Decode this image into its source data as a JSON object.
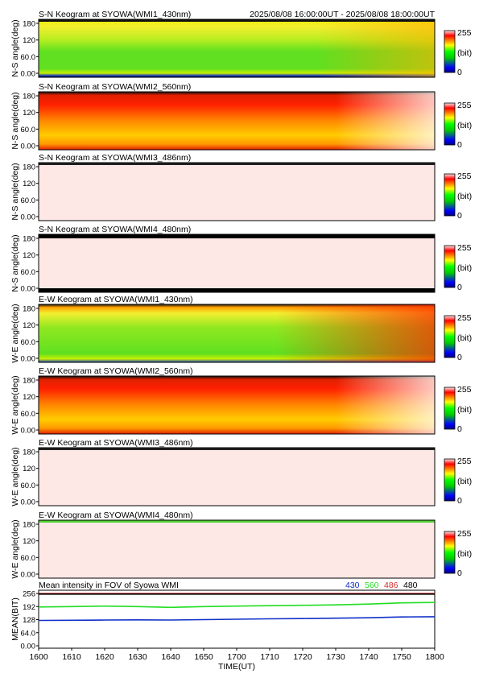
{
  "header": {
    "time_range": "2025/08/08 16:00:00UT - 2025/08/08 18:00:00UT"
  },
  "colorbar": {
    "max_label": "255",
    "unit_label": "(bit)",
    "min_label": "0"
  },
  "keogram_y_ticks": [
    "180",
    "120",
    "60.0",
    "0.00"
  ],
  "panels": [
    {
      "title": "S-N Keogram at SYOWA(WMI1_430nm)",
      "ylabel": "N-S angle(deg)",
      "pattern": "green"
    },
    {
      "title": "S-N Keogram at SYOWA(WMI2_560nm)",
      "ylabel": "N-S angle(deg)",
      "pattern": "red"
    },
    {
      "title": "S-N Keogram at SYOWA(WMI3_486nm)",
      "ylabel": "N-S angle(deg)",
      "pattern": "pink"
    },
    {
      "title": "S-N Keogram at SYOWA(WMI4_480nm)",
      "ylabel": "N-S angle(deg)",
      "pattern": "pink-dark-edges"
    },
    {
      "title": "E-W Keogram at SYOWA(WMI1_430nm)",
      "ylabel": "W-E angle(deg)",
      "pattern": "green-red-top"
    },
    {
      "title": "E-W Keogram at SYOWA(WMI2_560nm)",
      "ylabel": "W-E angle(deg)",
      "pattern": "red"
    },
    {
      "title": "E-W Keogram at SYOWA(WMI3_486nm)",
      "ylabel": "W-E angle(deg)",
      "pattern": "pink"
    },
    {
      "title": "E-W Keogram at SYOWA(WMI4_480nm)",
      "ylabel": "W-E angle(deg)",
      "pattern": "pink-green-top"
    }
  ],
  "chart_data": {
    "type": "line",
    "title": "Mean intensity in FOV of Syowa WMI",
    "xlabel": "TIME(UT)",
    "ylabel": "MEAN(BIT)",
    "x_ticks": [
      "1600",
      "1610",
      "1620",
      "1630",
      "1640",
      "1650",
      "1700",
      "1710",
      "1720",
      "1730",
      "1740",
      "1750",
      "1800"
    ],
    "y_ticks": [
      "256",
      "192",
      "128",
      "64.0",
      "0.00"
    ],
    "xlim": [
      0,
      120
    ],
    "ylim": [
      0,
      256
    ],
    "legend": [
      "430",
      "560",
      "486",
      "480"
    ],
    "legend_position": "top-right",
    "series": [
      {
        "name": "430",
        "color": "#1030c8",
        "x": [
          0,
          10,
          20,
          30,
          40,
          50,
          60,
          70,
          80,
          90,
          100,
          110,
          120
        ],
        "y": [
          124,
          125,
          126,
          127,
          126,
          128,
          130,
          132,
          133,
          135,
          137,
          141,
          142
        ]
      },
      {
        "name": "560",
        "color": "#22dd22",
        "x": [
          0,
          10,
          20,
          30,
          40,
          50,
          60,
          70,
          80,
          90,
          100,
          110,
          120
        ],
        "y": [
          190,
          192,
          194,
          192,
          188,
          192,
          194,
          196,
          198,
          200,
          204,
          210,
          212
        ]
      },
      {
        "name": "486",
        "color": "#d03030",
        "x": [
          0,
          120
        ],
        "y": [
          256,
          256
        ]
      },
      {
        "name": "480",
        "color": "#000000",
        "x": [
          0,
          120
        ],
        "y": [
          253,
          253
        ]
      }
    ]
  }
}
